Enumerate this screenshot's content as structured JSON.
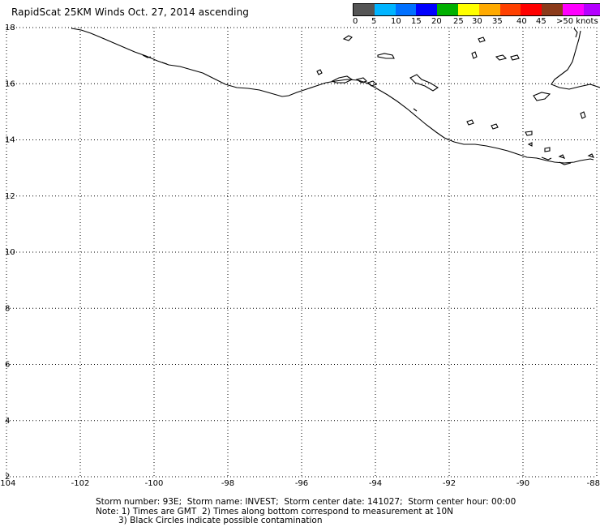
{
  "header": {
    "title": "RapidScat 25KM Winds Oct. 27, 2014 ascending"
  },
  "wind_scale": {
    "colors": [
      "#555555",
      "#00b4ff",
      "#0070ff",
      "#0000ff",
      "#00b000",
      "#ffff00",
      "#ffaa00",
      "#ff4000",
      "#ff0000",
      "#8b3a1a",
      "#ff00ff",
      "#b400ff",
      "#6000a0"
    ],
    "labels": [
      "0",
      "5",
      "10",
      "15",
      "20",
      "25",
      "30",
      "35",
      "40",
      "45",
      ">50 knots"
    ]
  },
  "map": {
    "lon_range": [
      -104,
      -88
    ],
    "lat_range": [
      2,
      18
    ],
    "lon_ticks": [
      "-104",
      "-102",
      "-100",
      "-98",
      "-96",
      "-94",
      "-92",
      "-90",
      "-88"
    ],
    "lat_ticks": [
      "18",
      "16",
      "14",
      "12",
      "10",
      "8",
      "6",
      "4",
      "2"
    ],
    "gridlines": "dotted",
    "coastline_color": "#000000"
  },
  "footer": {
    "line1": "Storm number: 93E;  Storm name: INVEST;  Storm center date: 141027;  Storm center hour: 00:00",
    "line2": "Note: 1) Times are GMT  2) Times along bottom correspond to measurement at 10N",
    "line3": "3) Black Circles indicate possible contamination"
  }
}
